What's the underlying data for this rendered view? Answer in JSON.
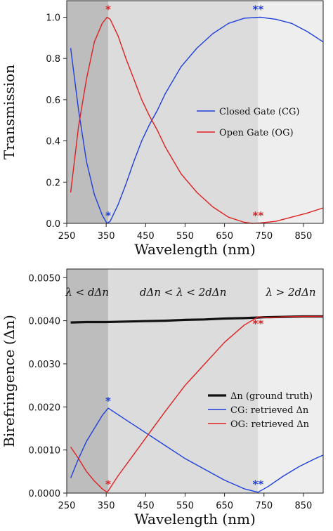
{
  "chart_data": [
    {
      "type": "line",
      "xlabel": "Wavelength (nm)",
      "ylabel": "Transmission",
      "xlim": [
        250,
        900
      ],
      "ylim": [
        0,
        1.08
      ],
      "xticks": [
        250,
        350,
        450,
        550,
        650,
        750,
        850
      ],
      "yticks": [
        0.0,
        0.2,
        0.4,
        0.6,
        0.8,
        1.0
      ],
      "ytick_labels": [
        "0.0",
        "0.2",
        "0.4",
        "0.6",
        "0.8",
        "1.0"
      ],
      "regions": [
        {
          "x0": 250,
          "x1": 355,
          "color": "#bdbdbd"
        },
        {
          "x0": 355,
          "x1": 735,
          "color": "#dcdcdc"
        },
        {
          "x0": 735,
          "x1": 900,
          "color": "#eeeeee"
        }
      ],
      "legend": {
        "placement": "center-right"
      },
      "series": [
        {
          "name": "Closed Gate (CG)",
          "color": "#1f3fdd",
          "x": [
            260,
            280,
            300,
            320,
            340,
            352,
            360,
            380,
            400,
            420,
            440,
            460,
            480,
            500,
            540,
            580,
            620,
            660,
            700,
            740,
            780,
            820,
            860,
            900
          ],
          "y": [
            0.85,
            0.55,
            0.3,
            0.14,
            0.04,
            0.0,
            0.01,
            0.09,
            0.19,
            0.3,
            0.4,
            0.48,
            0.55,
            0.63,
            0.76,
            0.85,
            0.92,
            0.97,
            0.995,
            1.0,
            0.99,
            0.97,
            0.93,
            0.88
          ]
        },
        {
          "name": "Open Gate (OG)",
          "color": "#e02020",
          "x": [
            260,
            280,
            300,
            320,
            340,
            352,
            360,
            380,
            400,
            420,
            440,
            460,
            480,
            500,
            540,
            580,
            620,
            660,
            700,
            720,
            740,
            780,
            820,
            860,
            900
          ],
          "y": [
            0.15,
            0.47,
            0.7,
            0.88,
            0.97,
            1.0,
            0.99,
            0.91,
            0.8,
            0.7,
            0.6,
            0.52,
            0.45,
            0.37,
            0.24,
            0.15,
            0.08,
            0.03,
            0.005,
            0.0,
            0.002,
            0.01,
            0.03,
            0.05,
            0.075
          ]
        }
      ],
      "annotations": [
        {
          "text": "*",
          "x": 355,
          "y": 1.02,
          "color": "#e02020"
        },
        {
          "text": "**",
          "x": 735,
          "y": 1.02,
          "color": "#1f3fdd"
        },
        {
          "text": "*",
          "x": 355,
          "y": 0.02,
          "color": "#1f3fdd"
        },
        {
          "text": "**",
          "x": 735,
          "y": 0.02,
          "color": "#e02020"
        }
      ]
    },
    {
      "type": "line",
      "xlabel": "Wavelength (nm)",
      "ylabel": "Birefringence (Δn)",
      "xlim": [
        250,
        900
      ],
      "ylim": [
        0,
        0.0052
      ],
      "xticks": [
        250,
        350,
        450,
        550,
        650,
        750,
        850
      ],
      "yticks": [
        0.0,
        0.001,
        0.002,
        0.003,
        0.004,
        0.005
      ],
      "ytick_labels": [
        "0.0000",
        "0.0010",
        "0.0020",
        "0.0030",
        "0.0040",
        "0.0050"
      ],
      "regions": [
        {
          "x0": 250,
          "x1": 355,
          "color": "#bdbdbd"
        },
        {
          "x0": 355,
          "x1": 735,
          "color": "#dcdcdc"
        },
        {
          "x0": 735,
          "x1": 900,
          "color": "#eeeeee"
        }
      ],
      "region_labels": [
        {
          "text": "λ < dΔn",
          "x": 302
        },
        {
          "text": "dΔn < λ < 2dΔn",
          "x": 545
        },
        {
          "text": "λ > 2dΔn",
          "x": 818
        }
      ],
      "legend": {
        "placement": "center-right"
      },
      "series": [
        {
          "name": "Δn (ground truth)",
          "color": "#111111",
          "x": [
            260,
            300,
            350,
            400,
            450,
            500,
            550,
            600,
            650,
            700,
            750,
            800,
            850,
            900
          ],
          "y": [
            0.00396,
            0.00397,
            0.00397,
            0.00398,
            0.00399,
            0.004,
            0.00402,
            0.00403,
            0.00405,
            0.00406,
            0.00408,
            0.00409,
            0.0041,
            0.0041
          ]
        },
        {
          "name": "CG: retrieved Δn",
          "color": "#1f3fdd",
          "x": [
            260,
            280,
            300,
            320,
            340,
            355,
            400,
            450,
            500,
            550,
            600,
            650,
            700,
            735,
            760,
            800,
            840,
            880,
            900
          ],
          "y": [
            0.00035,
            0.0008,
            0.0012,
            0.0015,
            0.0018,
            0.00197,
            0.0017,
            0.0014,
            0.0011,
            0.0008,
            0.00055,
            0.0003,
            0.0001,
            2e-05,
            0.00015,
            0.0004,
            0.00062,
            0.0008,
            0.00088
          ]
        },
        {
          "name": "OG: retrieved Δn",
          "color": "#e02020",
          "x": [
            260,
            280,
            300,
            320,
            340,
            352,
            355,
            380,
            420,
            460,
            500,
            550,
            600,
            650,
            700,
            735,
            760,
            800,
            850,
            900
          ],
          "y": [
            0.00107,
            0.0008,
            0.0005,
            0.00028,
            0.0001,
            2e-05,
            5e-05,
            0.0004,
            0.0009,
            0.0014,
            0.0019,
            0.0025,
            0.003,
            0.0035,
            0.0039,
            0.00409,
            0.00407,
            0.00409,
            0.0041,
            0.0041
          ]
        }
      ],
      "annotations": [
        {
          "text": "*",
          "x": 355,
          "y": 0.00205,
          "color": "#1f3fdd"
        },
        {
          "text": "*",
          "x": 355,
          "y": 0.00012,
          "color": "#e02020"
        },
        {
          "text": "**",
          "x": 735,
          "y": 0.00012,
          "color": "#1f3fdd"
        },
        {
          "text": "**",
          "x": 735,
          "y": 0.00385,
          "color": "#e02020"
        }
      ]
    }
  ]
}
